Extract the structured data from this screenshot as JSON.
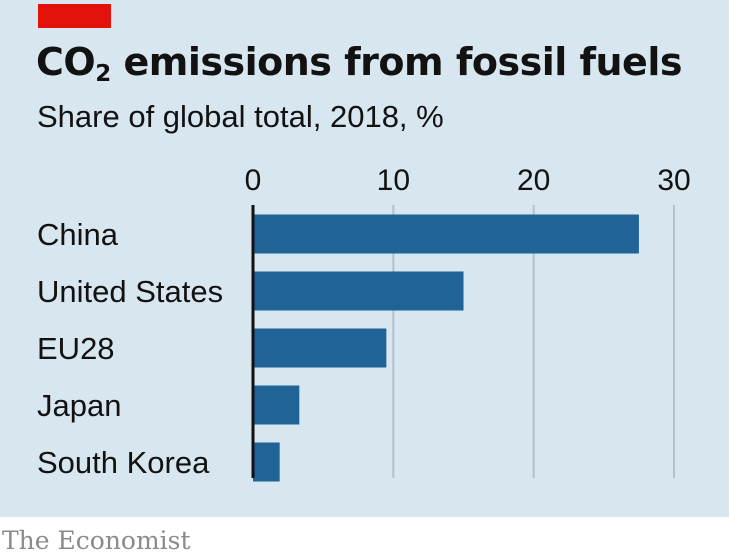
{
  "chart_data": {
    "type": "bar",
    "orientation": "horizontal",
    "title_parts": [
      "CO",
      "2",
      " emissions from fossil fuels"
    ],
    "subtitle": "Share of global total, 2018, %",
    "categories": [
      "China",
      "United States",
      "EU28",
      "Japan",
      "South Korea"
    ],
    "values": [
      27.5,
      15.0,
      9.5,
      3.3,
      1.9
    ],
    "x_ticks": [
      0,
      10,
      20,
      30
    ],
    "xlim": [
      0,
      30
    ],
    "grid": true,
    "colors": {
      "bar": "#1f6397",
      "grid": "#b3c1cb",
      "axis": "#121212",
      "accent": "#e3120b",
      "background": "#d7e6ef"
    }
  },
  "source": "The Economist"
}
